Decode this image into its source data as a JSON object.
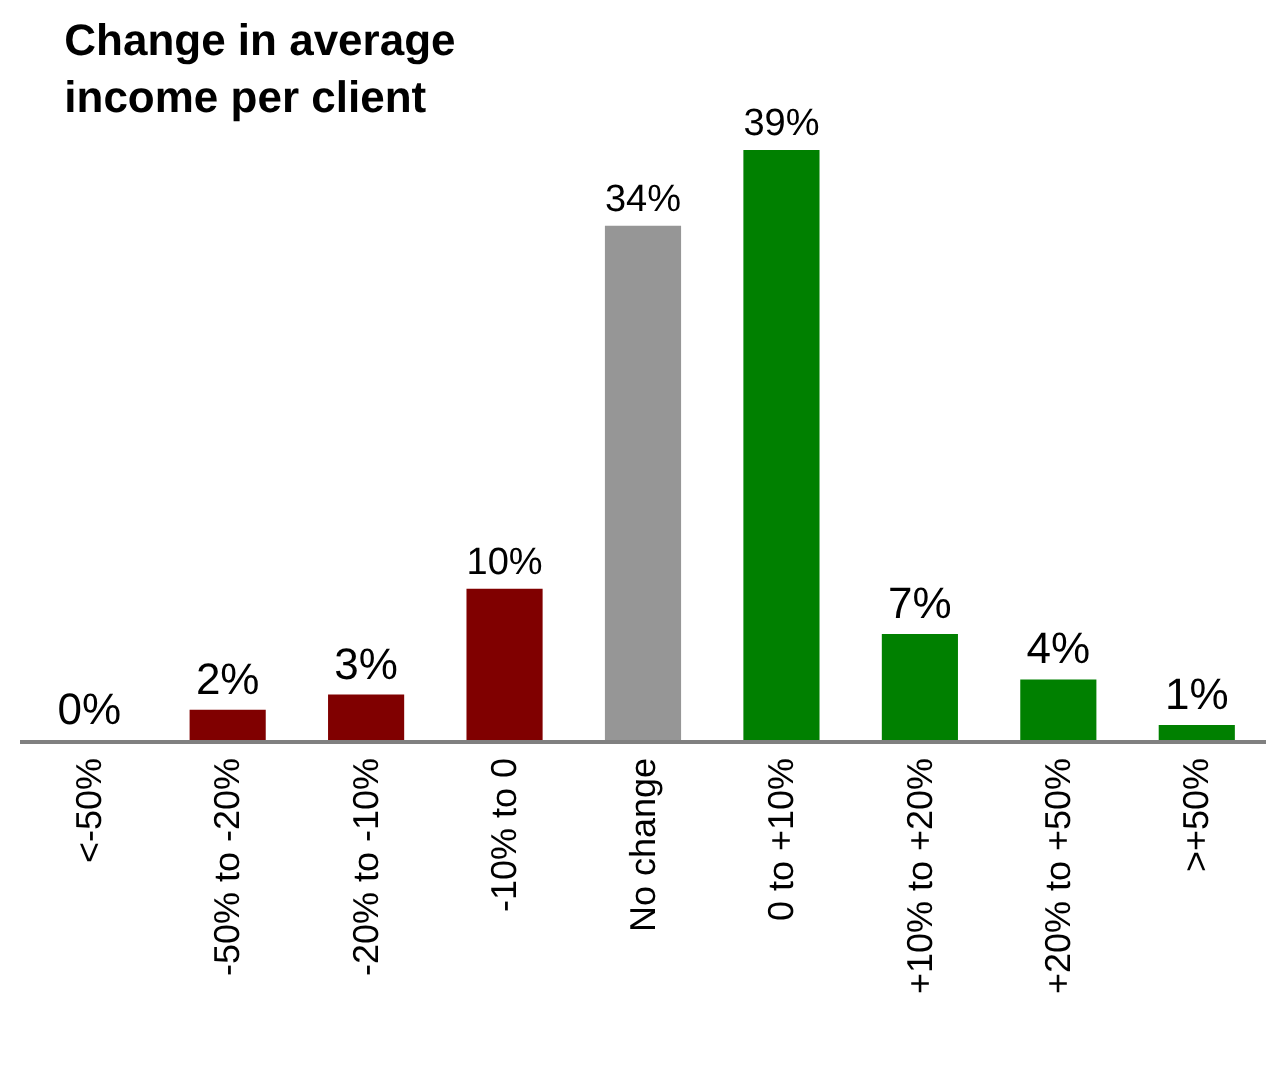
{
  "chart_data": {
    "type": "bar",
    "title": "Change in average income per client",
    "categories": [
      "<-50%",
      "-50% to -20%",
      "-20% to -10%",
      "-10% to 0",
      "No change",
      "0 to +10%",
      "+10% to +20%",
      "+20% to +50%",
      ">+50%"
    ],
    "values": [
      0,
      2,
      3,
      10,
      34,
      39,
      7,
      4,
      1
    ],
    "colors": [
      "#800000",
      "#800000",
      "#800000",
      "#800000",
      "#969696",
      "#008000",
      "#008000",
      "#008000",
      "#008000"
    ],
    "value_labels": [
      "0%",
      "2%",
      "3%",
      "10%",
      "34%",
      "39%",
      "7%",
      "4%",
      "1%"
    ]
  }
}
